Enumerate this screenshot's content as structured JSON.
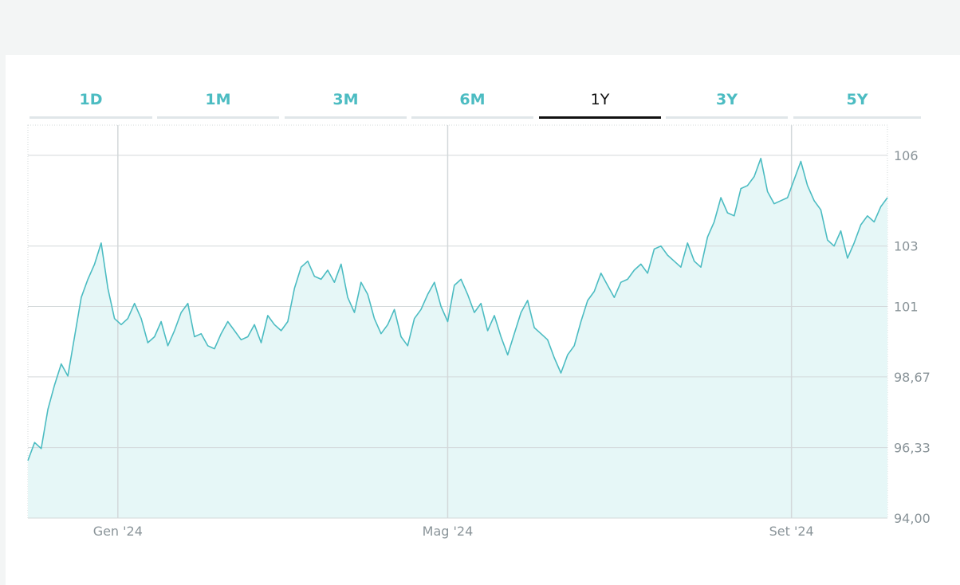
{
  "tabs": [
    {
      "label": "1D",
      "active": false
    },
    {
      "label": "1M",
      "active": false
    },
    {
      "label": "3M",
      "active": false
    },
    {
      "label": "6M",
      "active": false
    },
    {
      "label": "1Y",
      "active": true
    },
    {
      "label": "3Y",
      "active": false
    },
    {
      "label": "5Y",
      "active": false
    }
  ],
  "colors": {
    "line": "#4cbcc2",
    "fill": "#e6f7f7",
    "grid": "#d3d8da",
    "axis_text": "#8a9499",
    "tab_inactive": "#4cbcc2",
    "tab_active": "#111111"
  },
  "chart_data": {
    "type": "area",
    "title": "",
    "xlabel": "",
    "ylabel": "",
    "ylim": [
      94.0,
      107.0
    ],
    "y_ticks": [
      94.0,
      96.33,
      98.67,
      101,
      103,
      106
    ],
    "y_tick_labels": [
      "94,00",
      "96,33",
      "98,67",
      "101",
      "103",
      "106"
    ],
    "x_ticks": [
      {
        "label": "Gen '24",
        "index": 45
      },
      {
        "label": "Mag '24",
        "index": 210
      },
      {
        "label": "Set '24",
        "index": 382
      }
    ],
    "grid": true,
    "legend": "none",
    "series": [
      {
        "values": [
          96.0,
          96.6,
          97.6,
          98.2,
          99.1,
          98.9,
          99.5,
          100.5,
          101.2,
          101.6,
          103.2,
          102.0,
          100.5,
          100.3,
          100.6,
          101.0,
          100.7,
          100.2,
          100.2,
          100.5,
          100.2,
          100.6,
          101.0,
          100.6,
          100.7,
          100.3,
          100.8,
          101.2,
          100.6,
          100.4,
          101.5,
          100.6,
          100.3,
          100.9,
          101.6,
          102.5,
          101.9,
          102.3,
          101.8,
          102.2,
          101.7,
          101.0,
          101.5,
          101.0,
          101.3,
          100.3,
          100.8,
          100.9,
          100.2,
          101.6,
          101.7,
          101.0,
          101.3,
          101.8,
          100.8,
          101.4,
          101.3,
          101.1,
          101.7,
          101.0,
          101.2,
          101.6,
          101.2,
          101.1,
          100.2,
          100.3,
          100.8,
          101.4,
          100.6,
          100.7,
          99.5,
          99.8,
          100.4,
          99.8,
          100.8,
          100.8,
          100.1,
          100.0,
          100.0,
          99.7,
          99.9,
          99.2,
          98.4,
          98.9,
          99.8,
          100.1
        ],
        "sampled_values": [
          95.9,
          96.5,
          96.3,
          97.6,
          98.4,
          99.1,
          98.7,
          100.0,
          101.3,
          101.9,
          102.4,
          103.1,
          101.6,
          100.6,
          100.4,
          100.6,
          101.1,
          100.6,
          99.8,
          100.0,
          100.5,
          99.7,
          100.2,
          100.8,
          101.1,
          100.0,
          100.1,
          99.7,
          99.6,
          100.1,
          100.5,
          100.2,
          99.9,
          100.0,
          100.4,
          99.8,
          100.7,
          100.4,
          100.2,
          100.5,
          101.6,
          102.3,
          102.5,
          102.0,
          101.9,
          102.2,
          101.8,
          102.4,
          101.3,
          100.8,
          101.8,
          101.4,
          100.6,
          100.1,
          100.4,
          100.9,
          100.0,
          99.7,
          100.6,
          100.9,
          101.4,
          101.8,
          101.0,
          100.5,
          101.7,
          101.9,
          101.4,
          100.8,
          101.1,
          100.2,
          100.7,
          100.0,
          99.4,
          100.1,
          100.8,
          101.2,
          100.3,
          100.1,
          99.9,
          99.3,
          98.8,
          99.4,
          99.7,
          100.5,
          101.2,
          101.5,
          102.1,
          101.7,
          101.3,
          101.8,
          101.9,
          102.2,
          102.4,
          102.1,
          102.9,
          103.0,
          102.7,
          102.5,
          102.3,
          103.1,
          102.5,
          102.3,
          103.3,
          103.8,
          104.6,
          104.1,
          104.0,
          104.9,
          105.0,
          105.3,
          105.9,
          104.8,
          104.4,
          104.5,
          104.6,
          105.2,
          105.8,
          105.0,
          104.5,
          104.2,
          103.2,
          103.0,
          103.5,
          102.6,
          103.1,
          103.7,
          104.0,
          103.8,
          104.3,
          104.6
        ]
      }
    ]
  }
}
